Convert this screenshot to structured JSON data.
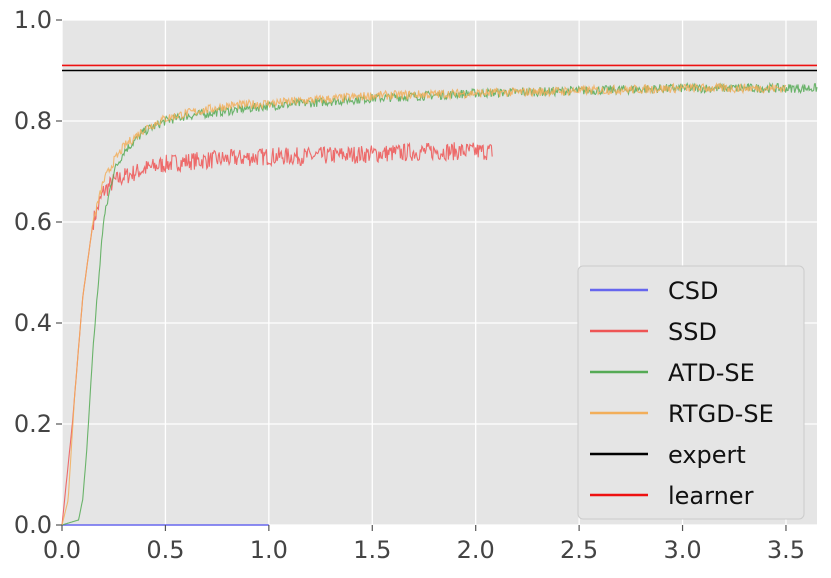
{
  "chart_data": {
    "type": "line",
    "title": "",
    "xlabel": "",
    "ylabel": "",
    "xlim": [
      0,
      3.65
    ],
    "ylim": [
      0,
      1.0
    ],
    "grid": true,
    "background": "#e5e5e5",
    "x_ticks": [
      "0.0",
      "0.5",
      "1.0",
      "1.5",
      "2.0",
      "2.5",
      "3.0",
      "3.5"
    ],
    "x_tick_values": [
      0,
      0.5,
      1.0,
      1.5,
      2.0,
      2.5,
      3.0,
      3.5
    ],
    "y_ticks": [
      "0.0",
      "0.2",
      "0.4",
      "0.6",
      "0.8",
      "1.0"
    ],
    "y_tick_values": [
      0,
      0.2,
      0.4,
      0.6,
      0.8,
      1.0
    ],
    "legend_position": "lower-right",
    "series": [
      {
        "name": "CSD",
        "color": "#6666ee",
        "x": [
          0,
          1.0
        ],
        "y": [
          0.0,
          0.0
        ]
      },
      {
        "name": "SSD",
        "color": "#ee5555",
        "x": [
          0,
          0.05,
          0.1,
          0.15,
          0.2,
          0.25,
          0.3,
          0.4,
          0.5,
          0.6,
          0.8,
          1.0,
          1.2,
          1.5,
          1.8,
          2.08
        ],
        "y": [
          0.0,
          0.2,
          0.45,
          0.6,
          0.66,
          0.68,
          0.69,
          0.705,
          0.715,
          0.72,
          0.725,
          0.73,
          0.73,
          0.735,
          0.74,
          0.74
        ]
      },
      {
        "name": "ATD-SE",
        "color": "#55aa55",
        "x": [
          0,
          0.08,
          0.1,
          0.12,
          0.15,
          0.2,
          0.25,
          0.3,
          0.4,
          0.5,
          0.6,
          0.8,
          1.0,
          1.5,
          2.0,
          2.5,
          3.0,
          3.5,
          3.65
        ],
        "y": [
          0.0,
          0.01,
          0.05,
          0.15,
          0.35,
          0.6,
          0.7,
          0.74,
          0.78,
          0.8,
          0.81,
          0.82,
          0.83,
          0.845,
          0.855,
          0.86,
          0.865,
          0.865,
          0.865
        ]
      },
      {
        "name": "RTGD-SE",
        "color": "#f2ae5a",
        "x": [
          0,
          0.03,
          0.06,
          0.1,
          0.15,
          0.2,
          0.25,
          0.3,
          0.4,
          0.5,
          0.6,
          0.8,
          1.0,
          1.5,
          2.0,
          2.5,
          3.0,
          3.5
        ],
        "y": [
          0.0,
          0.05,
          0.25,
          0.45,
          0.6,
          0.68,
          0.72,
          0.75,
          0.785,
          0.805,
          0.815,
          0.83,
          0.835,
          0.85,
          0.855,
          0.86,
          0.865,
          0.865
        ]
      },
      {
        "name": "expert",
        "color": "#000000",
        "x": [
          0,
          3.65
        ],
        "y": [
          0.9,
          0.9
        ]
      },
      {
        "name": "learner",
        "color": "#ee1111",
        "x": [
          0,
          3.65
        ],
        "y": [
          0.91,
          0.91
        ]
      }
    ]
  }
}
